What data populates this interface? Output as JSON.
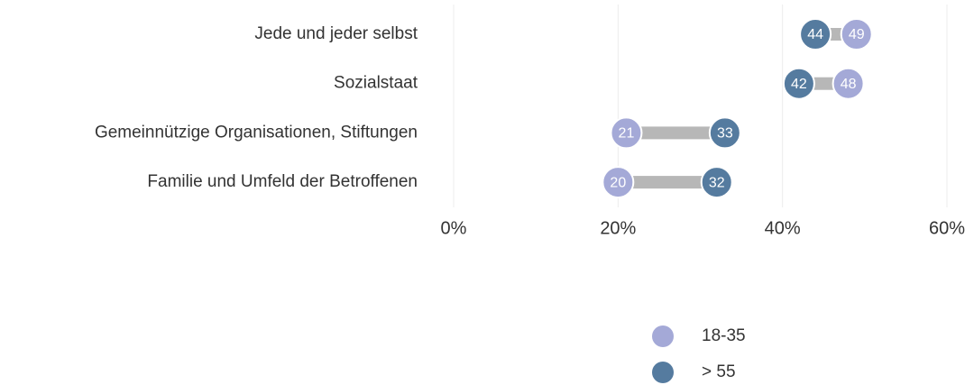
{
  "chart_data": {
    "type": "dumbbell",
    "categories": [
      "Jede und jeder selbst",
      "Sozialstaat",
      "Gemeinnützige Organisationen, Stiftungen",
      "Familie und Umfeld der Betroffenen"
    ],
    "series": [
      {
        "name": "18-35",
        "color": "#a4a9d7",
        "values": [
          49,
          48,
          21,
          20
        ]
      },
      {
        "name": "> 55",
        "color": "#557b9f",
        "values": [
          44,
          42,
          33,
          32
        ]
      }
    ],
    "xlim": [
      0,
      60
    ],
    "xticks": [
      {
        "value": 0,
        "label": "0%"
      },
      {
        "value": 20,
        "label": "20%"
      },
      {
        "value": 40,
        "label": "40%"
      },
      {
        "value": 60,
        "label": "60%"
      }
    ],
    "grid": true,
    "connector_color": "#b7b7b7"
  }
}
